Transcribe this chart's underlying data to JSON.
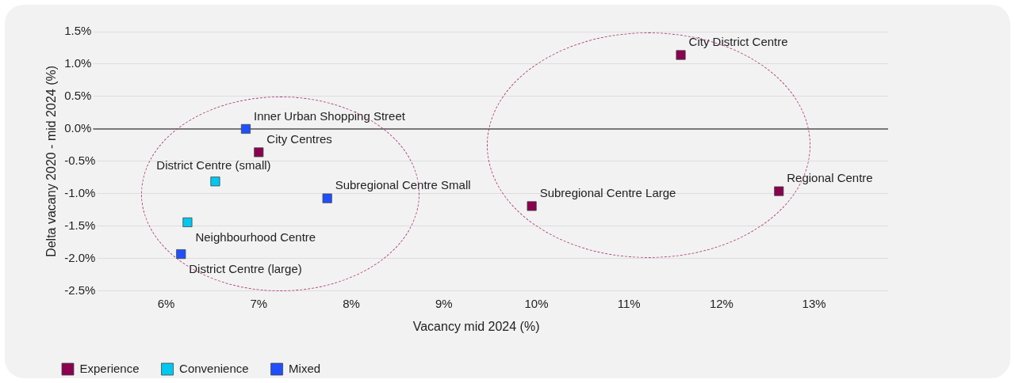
{
  "chart_data": {
    "type": "scatter",
    "xlabel": "Vacancy mid 2024 (%)",
    "ylabel": "Delta vacany 2020 - mid 2024 (%)",
    "xlim": [
      4.9,
      13.8
    ],
    "ylim": [
      -2.5,
      1.5
    ],
    "xticks": [
      {
        "value": 6,
        "label": "6%"
      },
      {
        "value": 7,
        "label": "7%"
      },
      {
        "value": 8,
        "label": "8%"
      },
      {
        "value": 9,
        "label": "9%"
      },
      {
        "value": 10,
        "label": "10%"
      },
      {
        "value": 11,
        "label": "11%"
      },
      {
        "value": 12,
        "label": "12%"
      },
      {
        "value": 13,
        "label": "13%"
      }
    ],
    "yticks": [
      {
        "value": -2.5,
        "label": "-2.5%"
      },
      {
        "value": -2,
        "label": "-2.0%"
      },
      {
        "value": -1.5,
        "label": "-1.5%"
      },
      {
        "value": -1,
        "label": "-1.0%"
      },
      {
        "value": -0.5,
        "label": "-0.5%"
      },
      {
        "value": 0,
        "label": "0.0%"
      },
      {
        "value": 0.5,
        "label": "0.5%"
      },
      {
        "value": 1,
        "label": "1.0%"
      },
      {
        "value": 1.5,
        "label": "1.5%"
      }
    ],
    "grid": "y",
    "legend": "bottom left",
    "marker": "square",
    "ref_lines": [
      {
        "axis": "y",
        "value": 0,
        "color": "#555555"
      }
    ],
    "series": [
      {
        "name": "Experience",
        "color": "#8b0050",
        "x": [
          11.56,
          7.0,
          9.95,
          12.62
        ],
        "values": [
          1.14,
          -0.36,
          -1.19,
          -0.96
        ]
      },
      {
        "name": "Convenience",
        "color": "#00c8f0",
        "x": [
          6.53,
          6.23
        ],
        "values": [
          -0.81,
          -1.44
        ]
      },
      {
        "name": "Mixed",
        "color": "#1f4fff",
        "x": [
          6.86,
          7.74,
          6.16
        ],
        "values": [
          0.0,
          -1.07,
          -1.93
        ]
      }
    ],
    "annotations": [
      {
        "text": "City District Centre",
        "x": 11.56,
        "y": 1.14
      },
      {
        "text": "Inner Urban Shopping Street",
        "x": 6.86,
        "y": 0.0
      },
      {
        "text": "City Centres",
        "x": 7.0,
        "y": -0.36
      },
      {
        "text": "District Centre (small)",
        "x": 6.53,
        "y": -0.81
      },
      {
        "text": "Subregional Centre Small",
        "x": 7.74,
        "y": -1.07
      },
      {
        "text": "Subregional Centre Large",
        "x": 9.95,
        "y": -1.19
      },
      {
        "text": "Regional Centre",
        "x": 12.62,
        "y": -0.96
      },
      {
        "text": "Neighbourhood Centre",
        "x": 6.23,
        "y": -1.44
      },
      {
        "text": "District Centre (large)",
        "x": 6.16,
        "y": -1.93
      }
    ]
  }
}
